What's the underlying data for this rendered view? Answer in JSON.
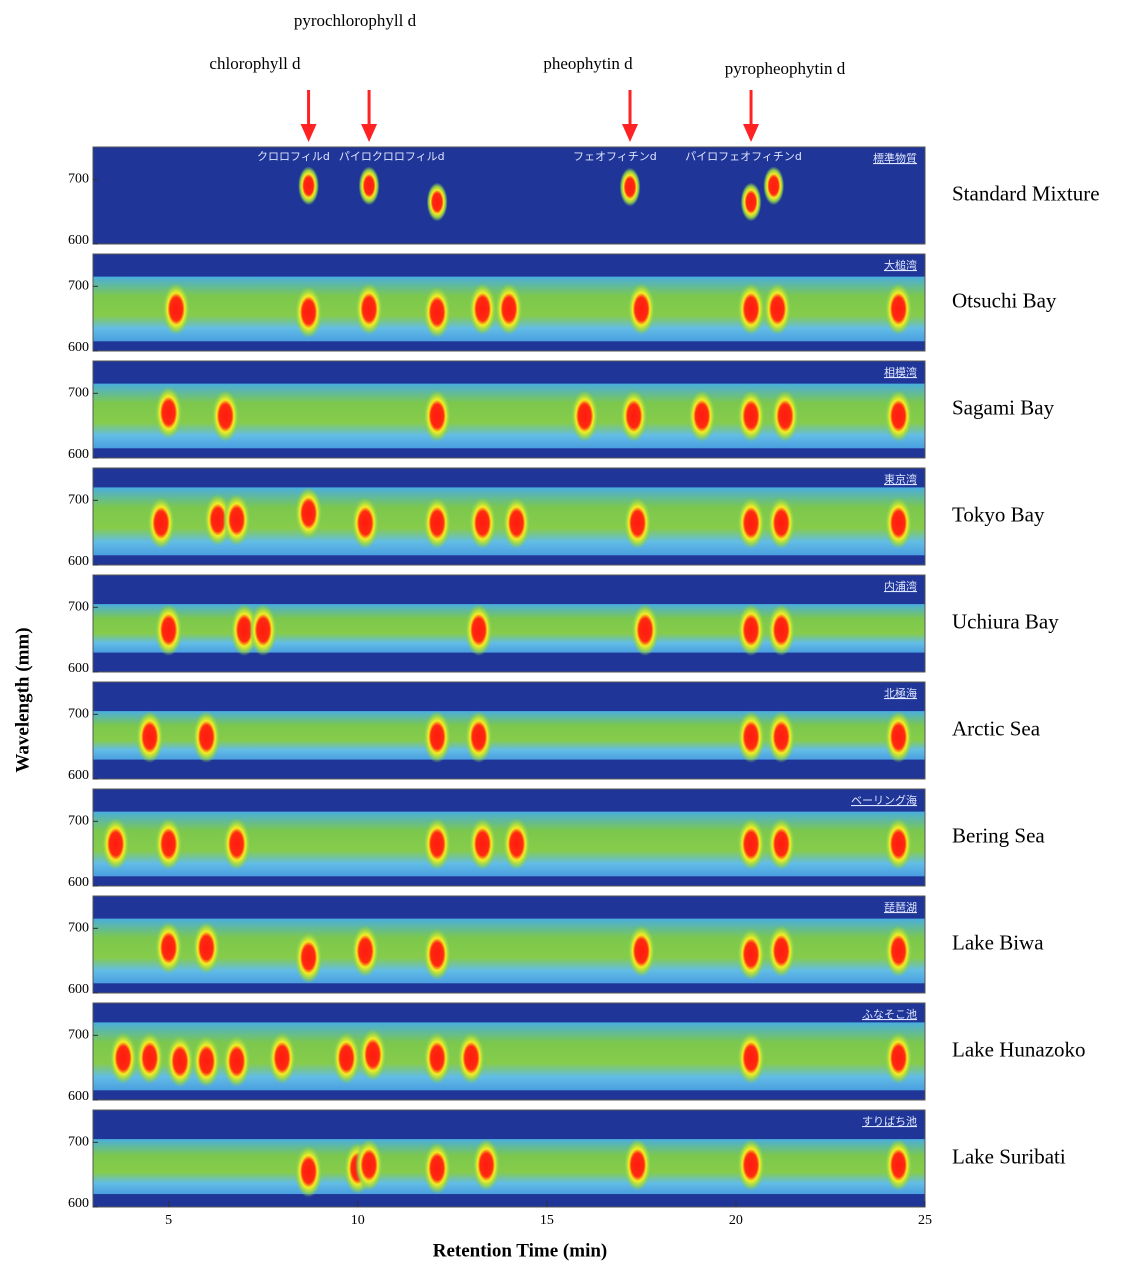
{
  "chart_data": {
    "type": "heatmap",
    "xlabel": "Retention Time (min)",
    "ylabel": "Wavelength (mm)",
    "xlim": [
      3,
      25
    ],
    "xticks": [
      5,
      10,
      15,
      20,
      25
    ],
    "ylim": [
      600,
      750
    ],
    "yticks": [
      600,
      700
    ],
    "arrows": [
      {
        "label": "chlorophyll d",
        "x": 8.7
      },
      {
        "label": "pyrochlorophyll d",
        "x": 10.3
      },
      {
        "label": "pheophytin d",
        "x": 17.2
      },
      {
        "label": "pyropheophytin d",
        "x": 20.4
      }
    ],
    "panels": [
      {
        "name": "Standard Mixture",
        "label": "標準物質",
        "peak_labels": [
          {
            "label": "クロロフィルd",
            "x": 8.3
          },
          {
            "label": "パイロクロロフィルd",
            "x": 10.9
          },
          {
            "label": "フェオフィチンd",
            "x": 16.8
          },
          {
            "label": "パイロフェオフィチンd",
            "x": 20.2
          }
        ],
        "peaks": [
          {
            "x": 8.7,
            "y": 690
          },
          {
            "x": 10.3,
            "y": 690
          },
          {
            "x": 12.1,
            "y": 665
          },
          {
            "x": 17.2,
            "y": 688
          },
          {
            "x": 20.4,
            "y": 665
          },
          {
            "x": 21.0,
            "y": 690
          }
        ]
      },
      {
        "name": "Otsuchi Bay",
        "label": "大槌湾",
        "band": [
          615,
          715
        ],
        "peaks": [
          {
            "x": 5.2,
            "y": 665
          },
          {
            "x": 8.7,
            "y": 660
          },
          {
            "x": 10.3,
            "y": 665
          },
          {
            "x": 12.1,
            "y": 660
          },
          {
            "x": 13.3,
            "y": 665
          },
          {
            "x": 14.0,
            "y": 665
          },
          {
            "x": 17.5,
            "y": 665
          },
          {
            "x": 20.4,
            "y": 665
          },
          {
            "x": 21.1,
            "y": 665
          },
          {
            "x": 24.3,
            "y": 665
          }
        ]
      },
      {
        "name": "Sagami Bay",
        "label": "相模湾",
        "band": [
          615,
          715
        ],
        "peaks": [
          {
            "x": 5.0,
            "y": 670
          },
          {
            "x": 6.5,
            "y": 665
          },
          {
            "x": 12.1,
            "y": 665
          },
          {
            "x": 16.0,
            "y": 665
          },
          {
            "x": 17.3,
            "y": 665
          },
          {
            "x": 19.1,
            "y": 665
          },
          {
            "x": 20.4,
            "y": 665
          },
          {
            "x": 21.3,
            "y": 665
          },
          {
            "x": 24.3,
            "y": 665
          }
        ]
      },
      {
        "name": "Tokyo Bay",
        "label": "東京湾",
        "band": [
          615,
          720
        ],
        "peaks": [
          {
            "x": 4.8,
            "y": 665
          },
          {
            "x": 6.3,
            "y": 670
          },
          {
            "x": 6.8,
            "y": 670
          },
          {
            "x": 8.7,
            "y": 680
          },
          {
            "x": 10.2,
            "y": 665
          },
          {
            "x": 12.1,
            "y": 665
          },
          {
            "x": 13.3,
            "y": 665
          },
          {
            "x": 14.2,
            "y": 665
          },
          {
            "x": 17.4,
            "y": 665
          },
          {
            "x": 20.4,
            "y": 665
          },
          {
            "x": 21.2,
            "y": 665
          },
          {
            "x": 24.3,
            "y": 665
          }
        ]
      },
      {
        "name": "Uchiura Bay",
        "label": "内浦湾",
        "band": [
          630,
          705
        ],
        "peaks": [
          {
            "x": 5.0,
            "y": 665
          },
          {
            "x": 7.0,
            "y": 665
          },
          {
            "x": 7.5,
            "y": 665
          },
          {
            "x": 13.2,
            "y": 665
          },
          {
            "x": 17.6,
            "y": 665
          },
          {
            "x": 20.4,
            "y": 665
          },
          {
            "x": 21.2,
            "y": 665
          }
        ]
      },
      {
        "name": "Arctic Sea",
        "label": "北極海",
        "band": [
          630,
          705
        ],
        "peaks": [
          {
            "x": 4.5,
            "y": 665
          },
          {
            "x": 6.0,
            "y": 665
          },
          {
            "x": 12.1,
            "y": 665
          },
          {
            "x": 13.2,
            "y": 665
          },
          {
            "x": 20.4,
            "y": 665
          },
          {
            "x": 21.2,
            "y": 665
          },
          {
            "x": 24.3,
            "y": 665
          }
        ]
      },
      {
        "name": "Bering Sea",
        "label": "ベーリング海",
        "band": [
          615,
          715
        ],
        "peaks": [
          {
            "x": 3.6,
            "y": 665
          },
          {
            "x": 5.0,
            "y": 665
          },
          {
            "x": 6.8,
            "y": 665
          },
          {
            "x": 12.1,
            "y": 665
          },
          {
            "x": 13.3,
            "y": 665
          },
          {
            "x": 14.2,
            "y": 665
          },
          {
            "x": 20.4,
            "y": 665
          },
          {
            "x": 21.2,
            "y": 665
          },
          {
            "x": 24.3,
            "y": 665
          }
        ]
      },
      {
        "name": "Lake Biwa",
        "label": "琵琶湖",
        "band": [
          615,
          715
        ],
        "peaks": [
          {
            "x": 5.0,
            "y": 670
          },
          {
            "x": 6.0,
            "y": 670
          },
          {
            "x": 8.7,
            "y": 655
          },
          {
            "x": 10.2,
            "y": 665
          },
          {
            "x": 12.1,
            "y": 660
          },
          {
            "x": 17.5,
            "y": 665
          },
          {
            "x": 20.4,
            "y": 660
          },
          {
            "x": 21.2,
            "y": 665
          },
          {
            "x": 24.3,
            "y": 665
          }
        ]
      },
      {
        "name": "Lake Hunazoko",
        "label": "ふなそこ池",
        "band": [
          615,
          720
        ],
        "peaks": [
          {
            "x": 3.8,
            "y": 665
          },
          {
            "x": 4.5,
            "y": 665
          },
          {
            "x": 5.3,
            "y": 660
          },
          {
            "x": 6.0,
            "y": 660
          },
          {
            "x": 6.8,
            "y": 660
          },
          {
            "x": 8.0,
            "y": 665
          },
          {
            "x": 9.7,
            "y": 665
          },
          {
            "x": 10.4,
            "y": 670
          },
          {
            "x": 12.1,
            "y": 665
          },
          {
            "x": 13.0,
            "y": 665
          },
          {
            "x": 20.4,
            "y": 665
          },
          {
            "x": 24.3,
            "y": 665
          }
        ]
      },
      {
        "name": "Lake Suribati",
        "label": "すりばち池",
        "band": [
          620,
          705
        ],
        "peaks": [
          {
            "x": 8.7,
            "y": 655
          },
          {
            "x": 10.0,
            "y": 660
          },
          {
            "x": 10.3,
            "y": 665
          },
          {
            "x": 12.1,
            "y": 660
          },
          {
            "x": 13.4,
            "y": 665
          },
          {
            "x": 17.4,
            "y": 665
          },
          {
            "x": 20.4,
            "y": 665
          },
          {
            "x": 24.3,
            "y": 665
          }
        ]
      }
    ]
  }
}
